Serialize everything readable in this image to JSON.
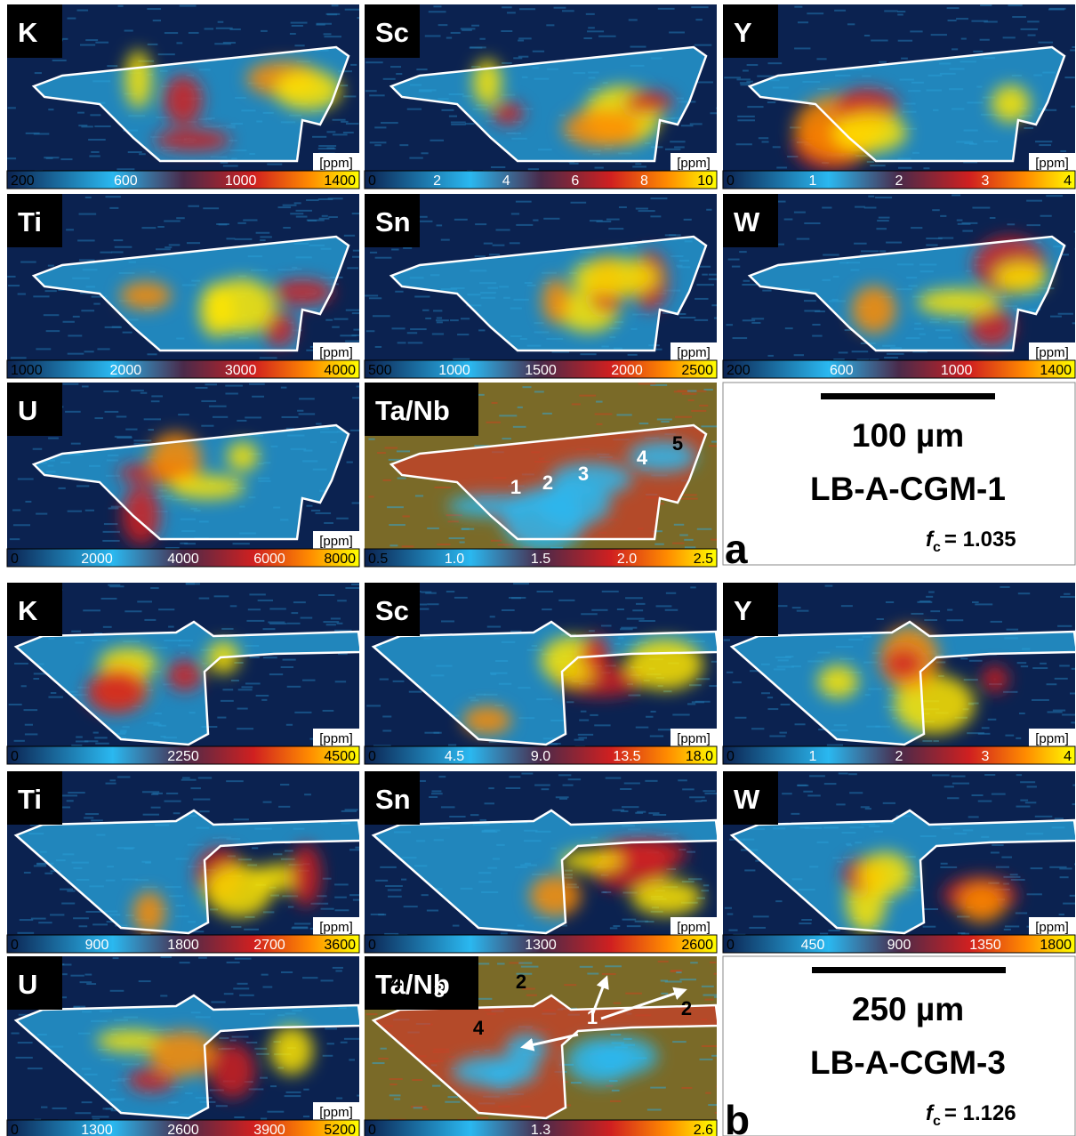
{
  "panels": [
    {
      "label": "a",
      "scale_bar": "100 µm",
      "sample": "LB-A-CGM-1",
      "fc_symbol": "f",
      "fc_subscript": "c",
      "fc_value": "= 1.035",
      "maps": [
        {
          "element": "K",
          "unit": "[ppm]",
          "colorbar_ticks": [
            "200",
            "600",
            "1000",
            "1400"
          ]
        },
        {
          "element": "Sc",
          "unit": "[ppm]",
          "colorbar_ticks": [
            "0",
            "2",
            "4",
            "6",
            "8",
            "10"
          ]
        },
        {
          "element": "Y",
          "unit": "[ppm]",
          "colorbar_ticks": [
            "0",
            "1",
            "2",
            "3",
            "4"
          ]
        },
        {
          "element": "Ti",
          "unit": "[ppm]",
          "colorbar_ticks": [
            "1000",
            "2000",
            "3000",
            "4000"
          ]
        },
        {
          "element": "Sn",
          "unit": "[ppm]",
          "colorbar_ticks": [
            "500",
            "1000",
            "1500",
            "2000",
            "2500"
          ]
        },
        {
          "element": "W",
          "unit": "[ppm]",
          "colorbar_ticks": [
            "200",
            "600",
            "1000",
            "1400"
          ]
        },
        {
          "element": "U",
          "unit": "[ppm]",
          "colorbar_ticks": [
            "0",
            "2000",
            "4000",
            "6000",
            "8000"
          ]
        },
        {
          "element": "Ta/Nb",
          "colorbar_ticks": [
            "0.5",
            "1.0",
            "1.5",
            "2.0",
            "2.5"
          ],
          "annotations": [
            "1",
            "2",
            "3",
            "4",
            "5"
          ]
        }
      ]
    },
    {
      "label": "b",
      "scale_bar": "250 µm",
      "sample": "LB-A-CGM-3",
      "fc_symbol": "f",
      "fc_subscript": "c",
      "fc_value": "= 1.126",
      "maps": [
        {
          "element": "K",
          "unit": "[ppm]",
          "colorbar_ticks": [
            "0",
            "2250",
            "4500"
          ]
        },
        {
          "element": "Sc",
          "unit": "[ppm]",
          "colorbar_ticks": [
            "0",
            "4.5",
            "9.0",
            "13.5",
            "18.0"
          ]
        },
        {
          "element": "Y",
          "unit": "[ppm]",
          "colorbar_ticks": [
            "0",
            "1",
            "2",
            "3",
            "4"
          ]
        },
        {
          "element": "Ti",
          "unit": "[ppm]",
          "colorbar_ticks": [
            "0",
            "900",
            "1800",
            "2700",
            "3600"
          ]
        },
        {
          "element": "Sn",
          "unit": "[ppm]",
          "colorbar_ticks": [
            "0",
            "1300",
            "2600"
          ]
        },
        {
          "element": "W",
          "unit": "[ppm]",
          "colorbar_ticks": [
            "0",
            "450",
            "900",
            "1350",
            "1800"
          ]
        },
        {
          "element": "U",
          "unit": "[ppm]",
          "colorbar_ticks": [
            "0",
            "1300",
            "2600",
            "3900",
            "5200"
          ]
        },
        {
          "element": "Ta/Nb",
          "colorbar_ticks": [
            "0",
            "1.3",
            "2.6"
          ],
          "annotations": [
            "4",
            "3",
            "2",
            "4",
            "1",
            "2"
          ]
        }
      ]
    }
  ]
}
